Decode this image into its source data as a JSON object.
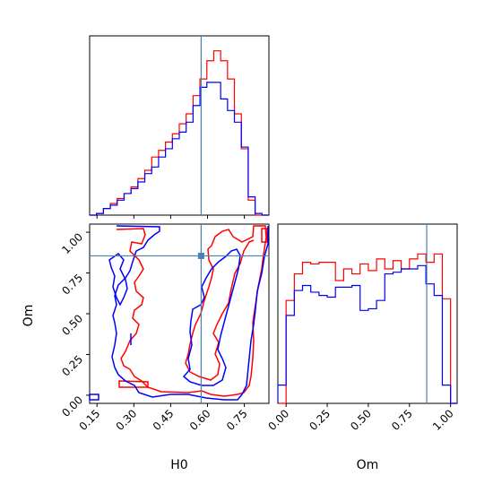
{
  "chart_data": [
    {
      "panel": "H0 marginal histogram",
      "type": "step-histogram",
      "x_range": [
        0.12,
        0.85
      ],
      "y_range": [
        0,
        1.08
      ],
      "truth_value": 0.574,
      "bin_edges": [
        0.12,
        0.1481,
        0.1762,
        0.2042,
        0.2323,
        0.2604,
        0.2885,
        0.3165,
        0.3446,
        0.3727,
        0.4008,
        0.4288,
        0.4569,
        0.485,
        0.5131,
        0.5412,
        0.5692,
        0.5973,
        0.6254,
        0.6535,
        0.6815,
        0.7096,
        0.7377,
        0.7658,
        0.7938,
        0.8219,
        0.85
      ],
      "series": [
        {
          "name": "red",
          "color": "#ff0000",
          "values": [
            0.0,
            0.01,
            0.04,
            0.07,
            0.1,
            0.13,
            0.17,
            0.22,
            0.27,
            0.35,
            0.39,
            0.44,
            0.49,
            0.55,
            0.61,
            0.72,
            0.82,
            0.93,
            0.99,
            0.93,
            0.82,
            0.61,
            0.4,
            0.09,
            0.0,
            0.0
          ]
        },
        {
          "name": "blue",
          "color": "#0000ff",
          "values": [
            0.0,
            0.01,
            0.04,
            0.06,
            0.09,
            0.13,
            0.16,
            0.2,
            0.25,
            0.29,
            0.35,
            0.4,
            0.46,
            0.5,
            0.56,
            0.66,
            0.77,
            0.8,
            0.8,
            0.7,
            0.63,
            0.56,
            0.41,
            0.11,
            0.01,
            0.0
          ]
        }
      ]
    },
    {
      "panel": "H0 vs Om 2D contours",
      "type": "contour",
      "x_range": [
        0.12,
        0.85
      ],
      "y_range": [
        -0.05,
        1.05
      ],
      "truth": {
        "x": 0.574,
        "y": 0.855
      },
      "series": [
        {
          "name": "red",
          "color": "#ff0000"
        },
        {
          "name": "blue",
          "color": "#0000ff"
        }
      ]
    },
    {
      "panel": "Om marginal histogram",
      "type": "step-histogram",
      "x_range": [
        -0.05,
        1.04
      ],
      "y_range": [
        0,
        1.08
      ],
      "truth_value": 0.855,
      "bin_edges": [
        -0.05,
        0.0,
        0.05,
        0.1,
        0.15,
        0.2,
        0.25,
        0.3,
        0.35,
        0.4,
        0.45,
        0.5,
        0.55,
        0.6,
        0.65,
        0.7,
        0.75,
        0.8,
        0.85,
        0.9,
        0.95,
        1.0,
        1.04
      ],
      "series": [
        {
          "name": "red",
          "color": "#ff0000",
          "values": [
            0.0,
            0.62,
            0.78,
            0.85,
            0.84,
            0.85,
            0.85,
            0.74,
            0.81,
            0.78,
            0.84,
            0.8,
            0.87,
            0.81,
            0.86,
            0.81,
            0.87,
            0.9,
            0.85,
            0.9,
            0.63,
            0.0
          ]
        },
        {
          "name": "blue",
          "color": "#0000ff",
          "values": [
            0.11,
            0.53,
            0.68,
            0.71,
            0.67,
            0.65,
            0.64,
            0.7,
            0.7,
            0.71,
            0.56,
            0.57,
            0.62,
            0.78,
            0.79,
            0.81,
            0.81,
            0.83,
            0.72,
            0.65,
            0.11,
            0.0
          ]
        }
      ]
    }
  ],
  "labels": {
    "x_h0": "H0",
    "y_om": "Om",
    "x_om": "Om"
  },
  "ticks": {
    "h0": [
      "0.15",
      "0.30",
      "0.45",
      "0.60",
      "0.75"
    ],
    "om": [
      "0.00",
      "0.25",
      "0.50",
      "0.75",
      "1.00"
    ]
  },
  "colors": {
    "truth": "#4682b4",
    "red": "#ff0000",
    "blue": "#0000ff"
  }
}
